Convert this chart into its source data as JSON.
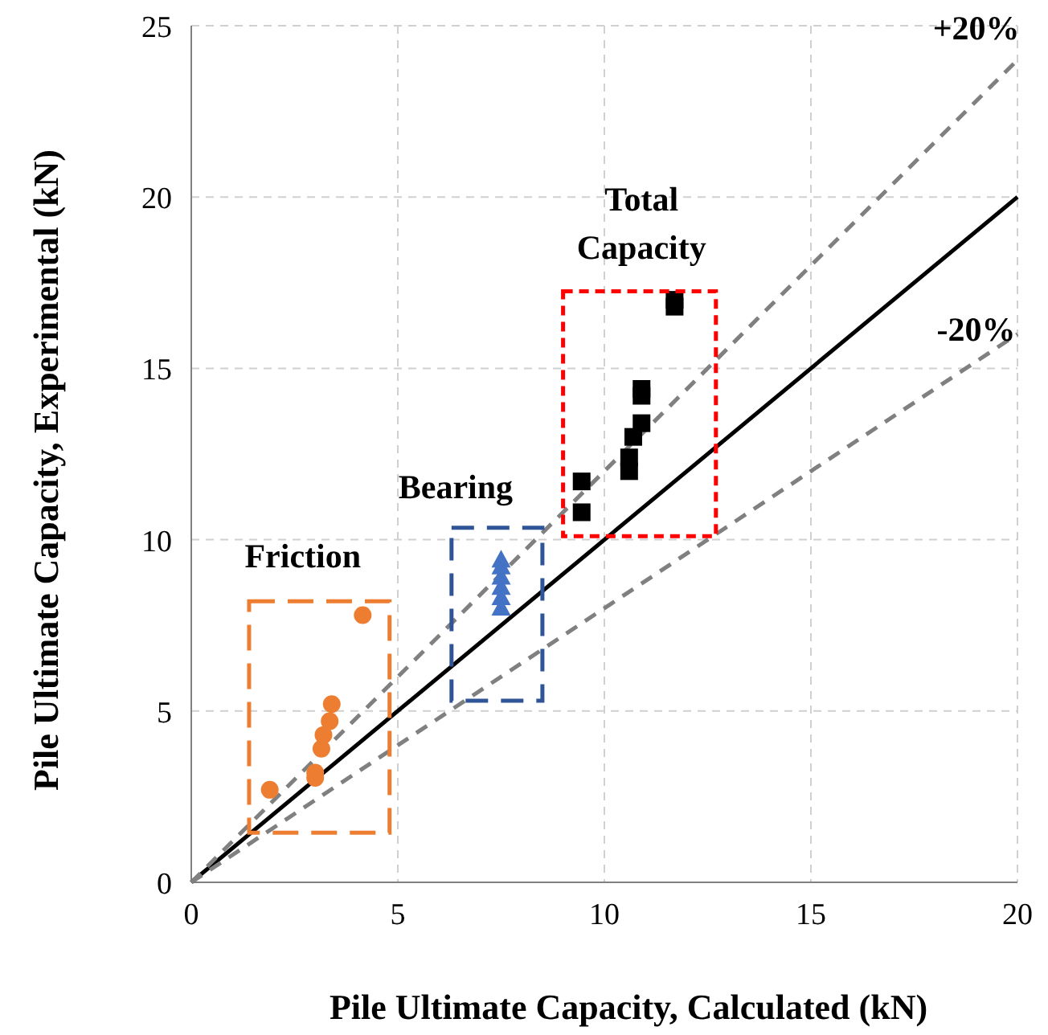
{
  "chart_data": {
    "type": "scatter",
    "xlabel": "Pile Ultimate Capacity, Calculated  (kN)",
    "ylabel": "Pile Ultimate Capacity, Experimental  (kN)",
    "xlim": [
      0,
      20
    ],
    "ylim": [
      0,
      25
    ],
    "xticks": [
      0,
      5,
      10,
      15,
      20
    ],
    "yticks": [
      0,
      5,
      10,
      15,
      20,
      25
    ],
    "grid": true,
    "series": [
      {
        "type": "line",
        "color": "#000000",
        "line_style": "solid",
        "marker": "none",
        "x": [
          0,
          20
        ],
        "values": [
          0,
          20
        ]
      },
      {
        "type": "line",
        "color": "#808080",
        "line_style": "dashed",
        "marker": "none",
        "x": [
          0,
          20
        ],
        "values": [
          0,
          24
        ]
      },
      {
        "type": "line",
        "color": "#808080",
        "line_style": "dashed",
        "marker": "none",
        "x": [
          0,
          20
        ],
        "values": [
          0,
          16
        ]
      },
      {
        "color": "#ed7d31",
        "marker": "circle",
        "x": [
          1.9,
          3.0,
          3.0,
          3.15,
          3.2,
          3.35,
          3.4,
          4.15
        ],
        "values": [
          2.7,
          3.05,
          3.2,
          3.9,
          4.3,
          4.7,
          5.2,
          7.8
        ]
      },
      {
        "color": "#4472c4",
        "marker": "triangle",
        "x": [
          7.5,
          7.5,
          7.5,
          7.5,
          7.5,
          7.5
        ],
        "values": [
          8.0,
          8.3,
          8.6,
          8.9,
          9.2,
          9.4
        ]
      },
      {
        "color": "#000000",
        "marker": "square",
        "x": [
          9.45,
          9.45,
          10.6,
          10.6,
          10.7,
          10.9,
          10.9,
          10.9,
          11.7,
          11.7
        ],
        "values": [
          10.8,
          11.7,
          12.0,
          12.4,
          13.0,
          13.4,
          14.2,
          14.4,
          16.8,
          17.0
        ]
      }
    ],
    "annotations": [
      "+20%",
      "-20%",
      "Friction",
      "Bearing",
      "Total Capacity"
    ]
  }
}
